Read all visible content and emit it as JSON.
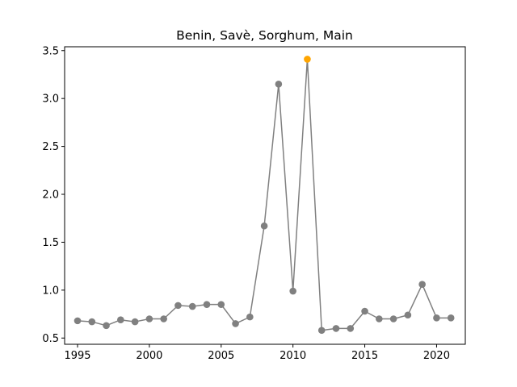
{
  "chart_data": {
    "type": "line",
    "title": "Benin, Savè, Sorghum, Main",
    "xlabel": "",
    "ylabel": "",
    "xlim": [
      1994.1,
      2022.0
    ],
    "ylim": [
      0.435,
      3.54
    ],
    "xticks": [
      1995,
      2000,
      2005,
      2010,
      2015,
      2020
    ],
    "yticks": [
      0.5,
      1.0,
      1.5,
      2.0,
      2.5,
      3.0,
      3.5
    ],
    "xtick_labels": [
      "1995",
      "2000",
      "2005",
      "2010",
      "2015",
      "2020"
    ],
    "ytick_labels": [
      "0.5",
      "1.0",
      "1.5",
      "2.0",
      "2.5",
      "3.0",
      "3.5"
    ],
    "grid": false,
    "series": [
      {
        "name": "Sorghum, Main",
        "color": "#808080",
        "x": [
          1995,
          1996,
          1997,
          1998,
          1999,
          2000,
          2001,
          2002,
          2003,
          2004,
          2005,
          2006,
          2007,
          2008,
          2009,
          2010,
          2011,
          2012,
          2013,
          2014,
          2015,
          2016,
          2017,
          2018,
          2019,
          2020,
          2021
        ],
        "values": [
          0.68,
          0.67,
          0.63,
          0.69,
          0.67,
          0.7,
          0.7,
          0.84,
          0.83,
          0.85,
          0.85,
          0.65,
          0.72,
          1.67,
          3.15,
          0.99,
          3.41,
          0.58,
          0.6,
          0.6,
          0.78,
          0.7,
          0.7,
          0.74,
          1.06,
          0.71,
          0.71
        ]
      }
    ],
    "highlight": {
      "x": 2011,
      "value": 3.41,
      "color": "#ffa500"
    }
  }
}
